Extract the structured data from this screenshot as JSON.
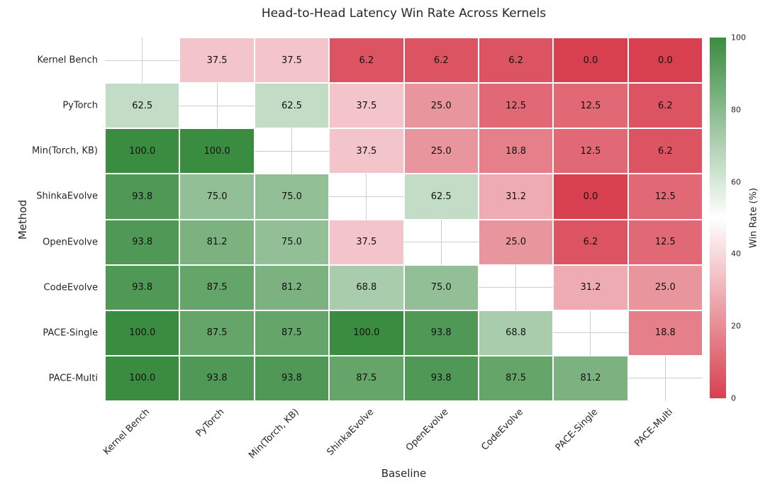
{
  "chart_data": {
    "type": "heatmap",
    "title": "Head-to-Head Latency Win Rate Across Kernels",
    "xlabel": "Baseline",
    "ylabel": "Method",
    "row_labels": [
      "Kernel Bench",
      "PyTorch",
      "Min(Torch, KB)",
      "ShinkaEvolve",
      "OpenEvolve",
      "CodeEvolve",
      "PACE-Single",
      "PACE-Multi"
    ],
    "col_labels": [
      "Kernel Bench",
      "PyTorch",
      "Min(Torch, KB)",
      "ShinkaEvolve",
      "OpenEvolve",
      "CodeEvolve",
      "PACE-Single",
      "PACE-Multi"
    ],
    "values": [
      [
        null,
        37.5,
        37.5,
        6.2,
        6.2,
        6.2,
        0.0,
        0.0
      ],
      [
        62.5,
        null,
        62.5,
        37.5,
        25.0,
        12.5,
        12.5,
        6.2
      ],
      [
        100.0,
        100.0,
        null,
        37.5,
        25.0,
        18.8,
        12.5,
        6.2
      ],
      [
        93.8,
        75.0,
        75.0,
        null,
        62.5,
        31.2,
        0.0,
        12.5
      ],
      [
        93.8,
        81.2,
        75.0,
        37.5,
        null,
        25.0,
        6.2,
        12.5
      ],
      [
        93.8,
        87.5,
        81.2,
        68.8,
        75.0,
        null,
        31.2,
        25.0
      ],
      [
        100.0,
        87.5,
        87.5,
        100.0,
        93.8,
        68.8,
        null,
        18.8
      ],
      [
        100.0,
        93.8,
        93.8,
        87.5,
        93.8,
        87.5,
        81.2,
        null
      ]
    ],
    "value_format_decimals": 1,
    "colorbar": {
      "label": "Win Rate (%)",
      "min": 0,
      "max": 100,
      "ticks": [
        0,
        20,
        40,
        60,
        80,
        100
      ]
    },
    "colors": {
      "low": "#d8404f",
      "mid": "#ffffff",
      "high": "#3a8c41",
      "grid": "#cdcdcd"
    },
    "legend_position": "right-colorbar",
    "grid": "white-gaps-between-cells"
  }
}
